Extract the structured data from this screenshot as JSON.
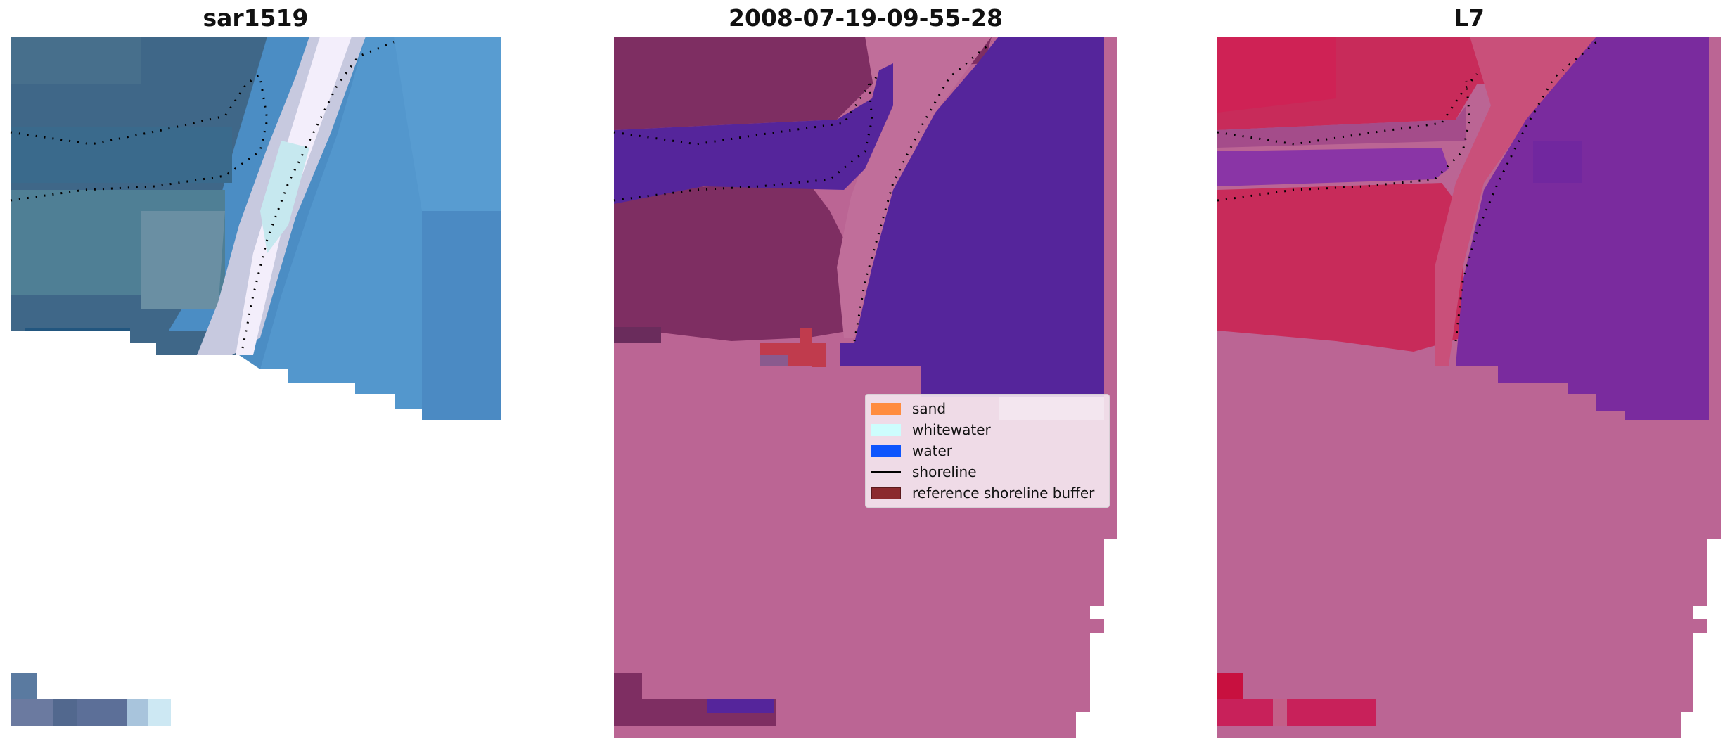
{
  "panels": [
    {
      "title": "sar1519"
    },
    {
      "title": "2008-07-19-09-55-28"
    },
    {
      "title": "L7"
    }
  ],
  "legend": {
    "items": [
      {
        "label": "sand",
        "color": "#ff8c3f",
        "kind": "patch"
      },
      {
        "label": "whitewater",
        "color": "#cdfdfd",
        "kind": "patch"
      },
      {
        "label": "water",
        "color": "#0d55fd",
        "kind": "patch"
      },
      {
        "label": "shoreline",
        "color": "#000000",
        "kind": "line"
      },
      {
        "label": "reference shoreline buffer",
        "color": "#8b2a2e",
        "kind": "patch"
      }
    ]
  },
  "colors": {
    "rgb_dark": "#3f6788",
    "rgb_mid": "#4a7fae",
    "rgb_sea": "#5498ce",
    "rgb_surf": "#f0eefb",
    "class_land": "#bb6594",
    "class_dark": "#7e2e62",
    "class_water": "#55259b",
    "class_buffer": "#c03b4d",
    "class_wash": "#dcd3e8",
    "mndwi_land": "#c82b5a",
    "mndwi_water": "#7a2b9e",
    "mndwi_nodata": "#bb6594"
  }
}
